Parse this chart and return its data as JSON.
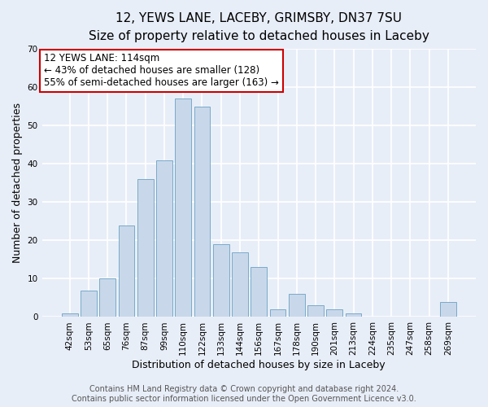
{
  "title_line1": "12, YEWS LANE, LACEBY, GRIMSBY, DN37 7SU",
  "title_line2": "Size of property relative to detached houses in Laceby",
  "xlabel": "Distribution of detached houses by size in Laceby",
  "ylabel": "Number of detached properties",
  "bar_labels": [
    "42sqm",
    "53sqm",
    "65sqm",
    "76sqm",
    "87sqm",
    "99sqm",
    "110sqm",
    "122sqm",
    "133sqm",
    "144sqm",
    "156sqm",
    "167sqm",
    "178sqm",
    "190sqm",
    "201sqm",
    "213sqm",
    "224sqm",
    "235sqm",
    "247sqm",
    "258sqm",
    "269sqm"
  ],
  "bar_values": [
    1,
    7,
    10,
    24,
    36,
    41,
    57,
    55,
    19,
    17,
    13,
    2,
    6,
    3,
    2,
    1,
    0,
    0,
    0,
    0,
    4
  ],
  "bar_color": "#c8d8ea",
  "bar_edge_color": "#7aaac8",
  "ylim": [
    0,
    70
  ],
  "yticks": [
    0,
    10,
    20,
    30,
    40,
    50,
    60,
    70
  ],
  "background_color": "#e8eef8",
  "grid_color": "#ffffff",
  "annotation_box_text": "12 YEWS LANE: 114sqm\n← 43% of detached houses are smaller (128)\n55% of semi-detached houses are larger (163) →",
  "annotation_box_color": "#ffffff",
  "annotation_box_edgecolor": "#cc0000",
  "footer_line1": "Contains HM Land Registry data © Crown copyright and database right 2024.",
  "footer_line2": "Contains public sector information licensed under the Open Government Licence v3.0.",
  "title_fontsize": 11,
  "subtitle_fontsize": 10,
  "axis_label_fontsize": 9,
  "tick_fontsize": 7.5,
  "annotation_fontsize": 8.5,
  "footer_fontsize": 7
}
